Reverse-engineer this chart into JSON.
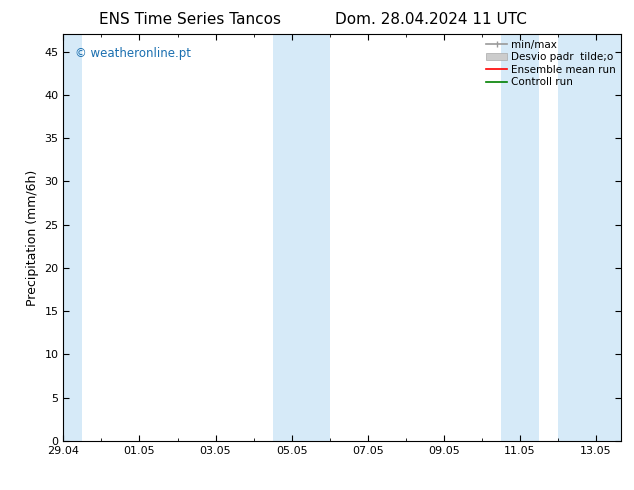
{
  "title_left": "ENS Time Series Tancos",
  "title_right": "Dom. 28.04.2024 11 UTC",
  "ylabel": "Precipitation (mm/6h)",
  "ylim": [
    0,
    47
  ],
  "yticks": [
    0,
    5,
    10,
    15,
    20,
    25,
    30,
    35,
    40,
    45
  ],
  "xtick_labels": [
    "29.04",
    "01.05",
    "03.05",
    "05.05",
    "07.05",
    "09.05",
    "11.05",
    "13.05"
  ],
  "xtick_positions": [
    0,
    2,
    4,
    6,
    8,
    10,
    12,
    14
  ],
  "xlim": [
    0,
    14.667
  ],
  "watermark": "© weatheronline.pt",
  "watermark_color": "#1a6fb0",
  "bg_color": "#ffffff",
  "shade_color": "#d6eaf8",
  "shade_bands": [
    [
      0,
      0.5
    ],
    [
      5.5,
      7.0
    ],
    [
      11.5,
      12.5
    ],
    [
      13.0,
      14.667
    ]
  ],
  "title_fontsize": 11,
  "tick_fontsize": 8,
  "legend_fontsize": 7.5,
  "ylabel_fontsize": 9
}
